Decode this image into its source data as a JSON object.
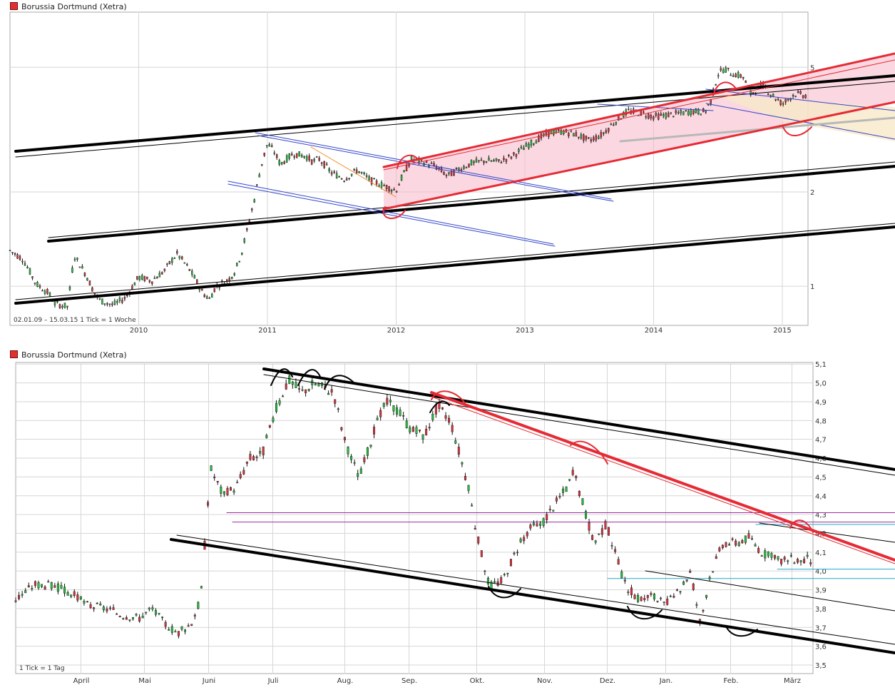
{
  "colors": {
    "up": "#21c43a",
    "down": "#e0313c",
    "grid": "#d6d6d6",
    "frame": "#a8a8a8",
    "axis_text": "#333333",
    "trend_red": "#e52b35",
    "trend_black": "#000000",
    "trend_blue": "#3244c9",
    "trend_orange": "#f08a28",
    "trend_purple": "#9a2c9a",
    "trend_cyan": "#23a8c8",
    "channel_fill": "#f7b8c9",
    "wedge_fill": "#f8e8c8"
  },
  "chart_data": [
    {
      "type": "candlestick",
      "title": "Borussia Dortmund (Xetra)",
      "footnote_range": "02.01.09 – 15.03.15",
      "footnote_tick": "1 Tick = 1 Woche",
      "x_ticks": [
        "2010",
        "2011",
        "2012",
        "2013",
        "2014",
        "2015"
      ],
      "y_scale": "log",
      "y_ticks": [
        "5",
        "2",
        "1"
      ],
      "ylim": [
        0.75,
        7.5
      ],
      "grid": true,
      "price_path": [
        [
          2009.0,
          1.3
        ],
        [
          2009.1,
          1.22
        ],
        [
          2009.2,
          1.02
        ],
        [
          2009.3,
          0.95
        ],
        [
          2009.35,
          0.88
        ],
        [
          2009.45,
          0.86
        ],
        [
          2009.5,
          1.25
        ],
        [
          2009.6,
          1.07
        ],
        [
          2009.65,
          0.96
        ],
        [
          2009.7,
          0.9
        ],
        [
          2009.8,
          0.87
        ],
        [
          2009.9,
          0.92
        ],
        [
          2010.0,
          1.07
        ],
        [
          2010.1,
          1.04
        ],
        [
          2010.2,
          1.12
        ],
        [
          2010.25,
          1.2
        ],
        [
          2010.3,
          1.27
        ],
        [
          2010.4,
          1.12
        ],
        [
          2010.5,
          0.95
        ],
        [
          2010.55,
          0.91
        ],
        [
          2010.6,
          1.0
        ],
        [
          2010.7,
          1.05
        ],
        [
          2010.75,
          1.12
        ],
        [
          2010.8,
          1.28
        ],
        [
          2010.85,
          1.55
        ],
        [
          2010.9,
          1.9
        ],
        [
          2010.95,
          2.4
        ],
        [
          2011.0,
          2.85
        ],
        [
          2011.05,
          2.7
        ],
        [
          2011.1,
          2.45
        ],
        [
          2011.2,
          2.65
        ],
        [
          2011.3,
          2.6
        ],
        [
          2011.35,
          2.5
        ],
        [
          2011.4,
          2.55
        ],
        [
          2011.5,
          2.3
        ],
        [
          2011.6,
          2.2
        ],
        [
          2011.7,
          2.35
        ],
        [
          2011.8,
          2.18
        ],
        [
          2011.9,
          2.1
        ],
        [
          2012.0,
          2.02
        ],
        [
          2012.05,
          2.25
        ],
        [
          2012.12,
          2.55
        ],
        [
          2012.2,
          2.5
        ],
        [
          2012.3,
          2.42
        ],
        [
          2012.4,
          2.25
        ],
        [
          2012.5,
          2.38
        ],
        [
          2012.6,
          2.48
        ],
        [
          2012.7,
          2.52
        ],
        [
          2012.8,
          2.5
        ],
        [
          2012.9,
          2.6
        ],
        [
          2013.0,
          2.78
        ],
        [
          2013.1,
          2.95
        ],
        [
          2013.2,
          3.1
        ],
        [
          2013.3,
          3.12
        ],
        [
          2013.4,
          3.05
        ],
        [
          2013.5,
          2.92
        ],
        [
          2013.6,
          3.05
        ],
        [
          2013.7,
          3.35
        ],
        [
          2013.8,
          3.62
        ],
        [
          2013.9,
          3.58
        ],
        [
          2014.0,
          3.48
        ],
        [
          2014.1,
          3.52
        ],
        [
          2014.2,
          3.56
        ],
        [
          2014.3,
          3.62
        ],
        [
          2014.4,
          3.6
        ],
        [
          2014.45,
          3.95
        ],
        [
          2014.5,
          4.75
        ],
        [
          2014.55,
          4.95
        ],
        [
          2014.6,
          4.8
        ],
        [
          2014.7,
          4.65
        ],
        [
          2014.75,
          4.1
        ],
        [
          2014.85,
          4.4
        ],
        [
          2014.9,
          4.15
        ],
        [
          2015.0,
          3.82
        ],
        [
          2015.1,
          4.12
        ],
        [
          2015.2,
          4.05
        ]
      ]
    },
    {
      "type": "candlestick",
      "title": "Borussia Dortmund (Xetra)",
      "footnote_tick": "1 Tick = 1 Tag",
      "x_ticks": [
        "April",
        "Mai",
        "Juni",
        "Juli",
        "Aug.",
        "Sep.",
        "Okt.",
        "Nov.",
        "Dez.",
        "Jan.",
        "Feb.",
        "März"
      ],
      "y_ticks": [
        "5,1",
        "5,0",
        "4,9",
        "4,8",
        "4,7",
        "4,6",
        "4,5",
        "4,4",
        "4,3",
        "4,2",
        "4,1",
        "4,0",
        "3,9",
        "3,8",
        "3,7",
        "3,6",
        "3,5"
      ],
      "ylim": [
        3.5,
        5.15
      ],
      "grid": true,
      "price_path": [
        [
          0.0,
          3.85
        ],
        [
          0.3,
          3.93
        ],
        [
          0.6,
          3.92
        ],
        [
          0.9,
          3.87
        ],
        [
          1.1,
          3.82
        ],
        [
          1.4,
          3.8
        ],
        [
          1.6,
          3.77
        ],
        [
          1.9,
          3.75
        ],
        [
          2.1,
          3.8
        ],
        [
          2.3,
          3.72
        ],
        [
          2.5,
          3.67
        ],
        [
          2.7,
          3.72
        ],
        [
          2.85,
          3.85
        ],
        [
          3.0,
          4.55
        ],
        [
          3.2,
          4.4
        ],
        [
          3.4,
          4.45
        ],
        [
          3.6,
          4.6
        ],
        [
          3.8,
          4.62
        ],
        [
          4.0,
          4.85
        ],
        [
          4.2,
          5.02
        ],
        [
          4.4,
          4.95
        ],
        [
          4.6,
          5.0
        ],
        [
          4.9,
          4.95
        ],
        [
          5.1,
          4.65
        ],
        [
          5.3,
          4.5
        ],
        [
          5.5,
          4.72
        ],
        [
          5.7,
          4.9
        ],
        [
          5.9,
          4.85
        ],
        [
          6.1,
          4.75
        ],
        [
          6.3,
          4.72
        ],
        [
          6.5,
          4.88
        ],
        [
          6.7,
          4.8
        ],
        [
          6.9,
          4.55
        ],
        [
          7.0,
          4.4
        ],
        [
          7.1,
          4.2
        ],
        [
          7.3,
          3.92
        ],
        [
          7.5,
          3.95
        ],
        [
          7.7,
          4.1
        ],
        [
          7.9,
          4.22
        ],
        [
          8.1,
          4.25
        ],
        [
          8.3,
          4.35
        ],
        [
          8.5,
          4.45
        ],
        [
          8.6,
          4.52
        ],
        [
          8.75,
          4.35
        ],
        [
          8.9,
          4.15
        ],
        [
          9.1,
          4.25
        ],
        [
          9.25,
          4.08
        ],
        [
          9.4,
          3.92
        ],
        [
          9.6,
          3.85
        ],
        [
          9.8,
          3.87
        ],
        [
          10.0,
          3.82
        ],
        [
          10.2,
          3.88
        ],
        [
          10.4,
          4.0
        ],
        [
          10.55,
          3.72
        ],
        [
          10.7,
          3.98
        ],
        [
          10.9,
          4.15
        ],
        [
          11.1,
          4.15
        ],
        [
          11.3,
          4.18
        ],
        [
          11.5,
          4.1
        ],
        [
          11.7,
          4.06
        ]
      ],
      "horizontal_levels": [
        4.31,
        4.26,
        4.01,
        3.96
      ]
    }
  ]
}
